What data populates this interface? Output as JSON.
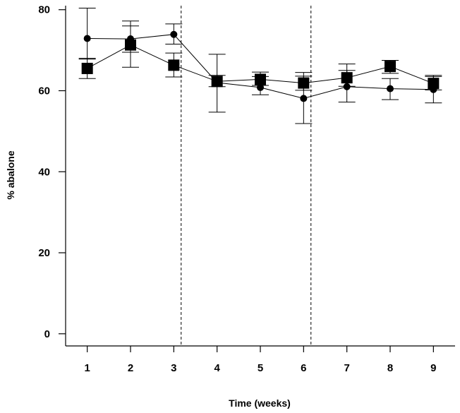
{
  "chart_data": {
    "type": "line",
    "title": "",
    "xlabel": "Time (weeks)",
    "ylabel": "% abalone",
    "x": [
      1,
      2,
      3,
      4,
      5,
      6,
      7,
      8,
      9
    ],
    "xticks": [
      "1",
      "2",
      "3",
      "4",
      "5",
      "6",
      "7",
      "8",
      "9"
    ],
    "yticks": [
      "0",
      "20",
      "40",
      "60",
      "80"
    ],
    "xlim": [
      0.5,
      9.5
    ],
    "ylim": [
      -3,
      81
    ],
    "grid": false,
    "legend": "none",
    "vertical_reference_lines": [
      3.17,
      6.17
    ],
    "series": [
      {
        "marker": "circle",
        "values": [
          72.9,
          72.8,
          73.9,
          62.0,
          60.8,
          58.1,
          61.0,
          60.5,
          60.3
        ],
        "error_low": [
          67.8,
          69.5,
          71.5,
          54.7,
          59.0,
          51.9,
          57.2,
          57.8,
          57.0
        ],
        "error_high": [
          80.4,
          76.0,
          76.5,
          69.0,
          63.5,
          64.5,
          65.0,
          63.0,
          63.8
        ]
      },
      {
        "marker": "square",
        "values": [
          65.5,
          71.3,
          66.3,
          62.3,
          62.8,
          61.9,
          63.2,
          66.0,
          61.8
        ],
        "error_low": [
          63.0,
          65.8,
          63.4,
          61.0,
          61.3,
          60.1,
          61.1,
          64.3,
          60.2
        ],
        "error_high": [
          68.0,
          77.2,
          69.3,
          63.8,
          64.6,
          63.6,
          66.6,
          67.5,
          63.5
        ]
      }
    ]
  }
}
